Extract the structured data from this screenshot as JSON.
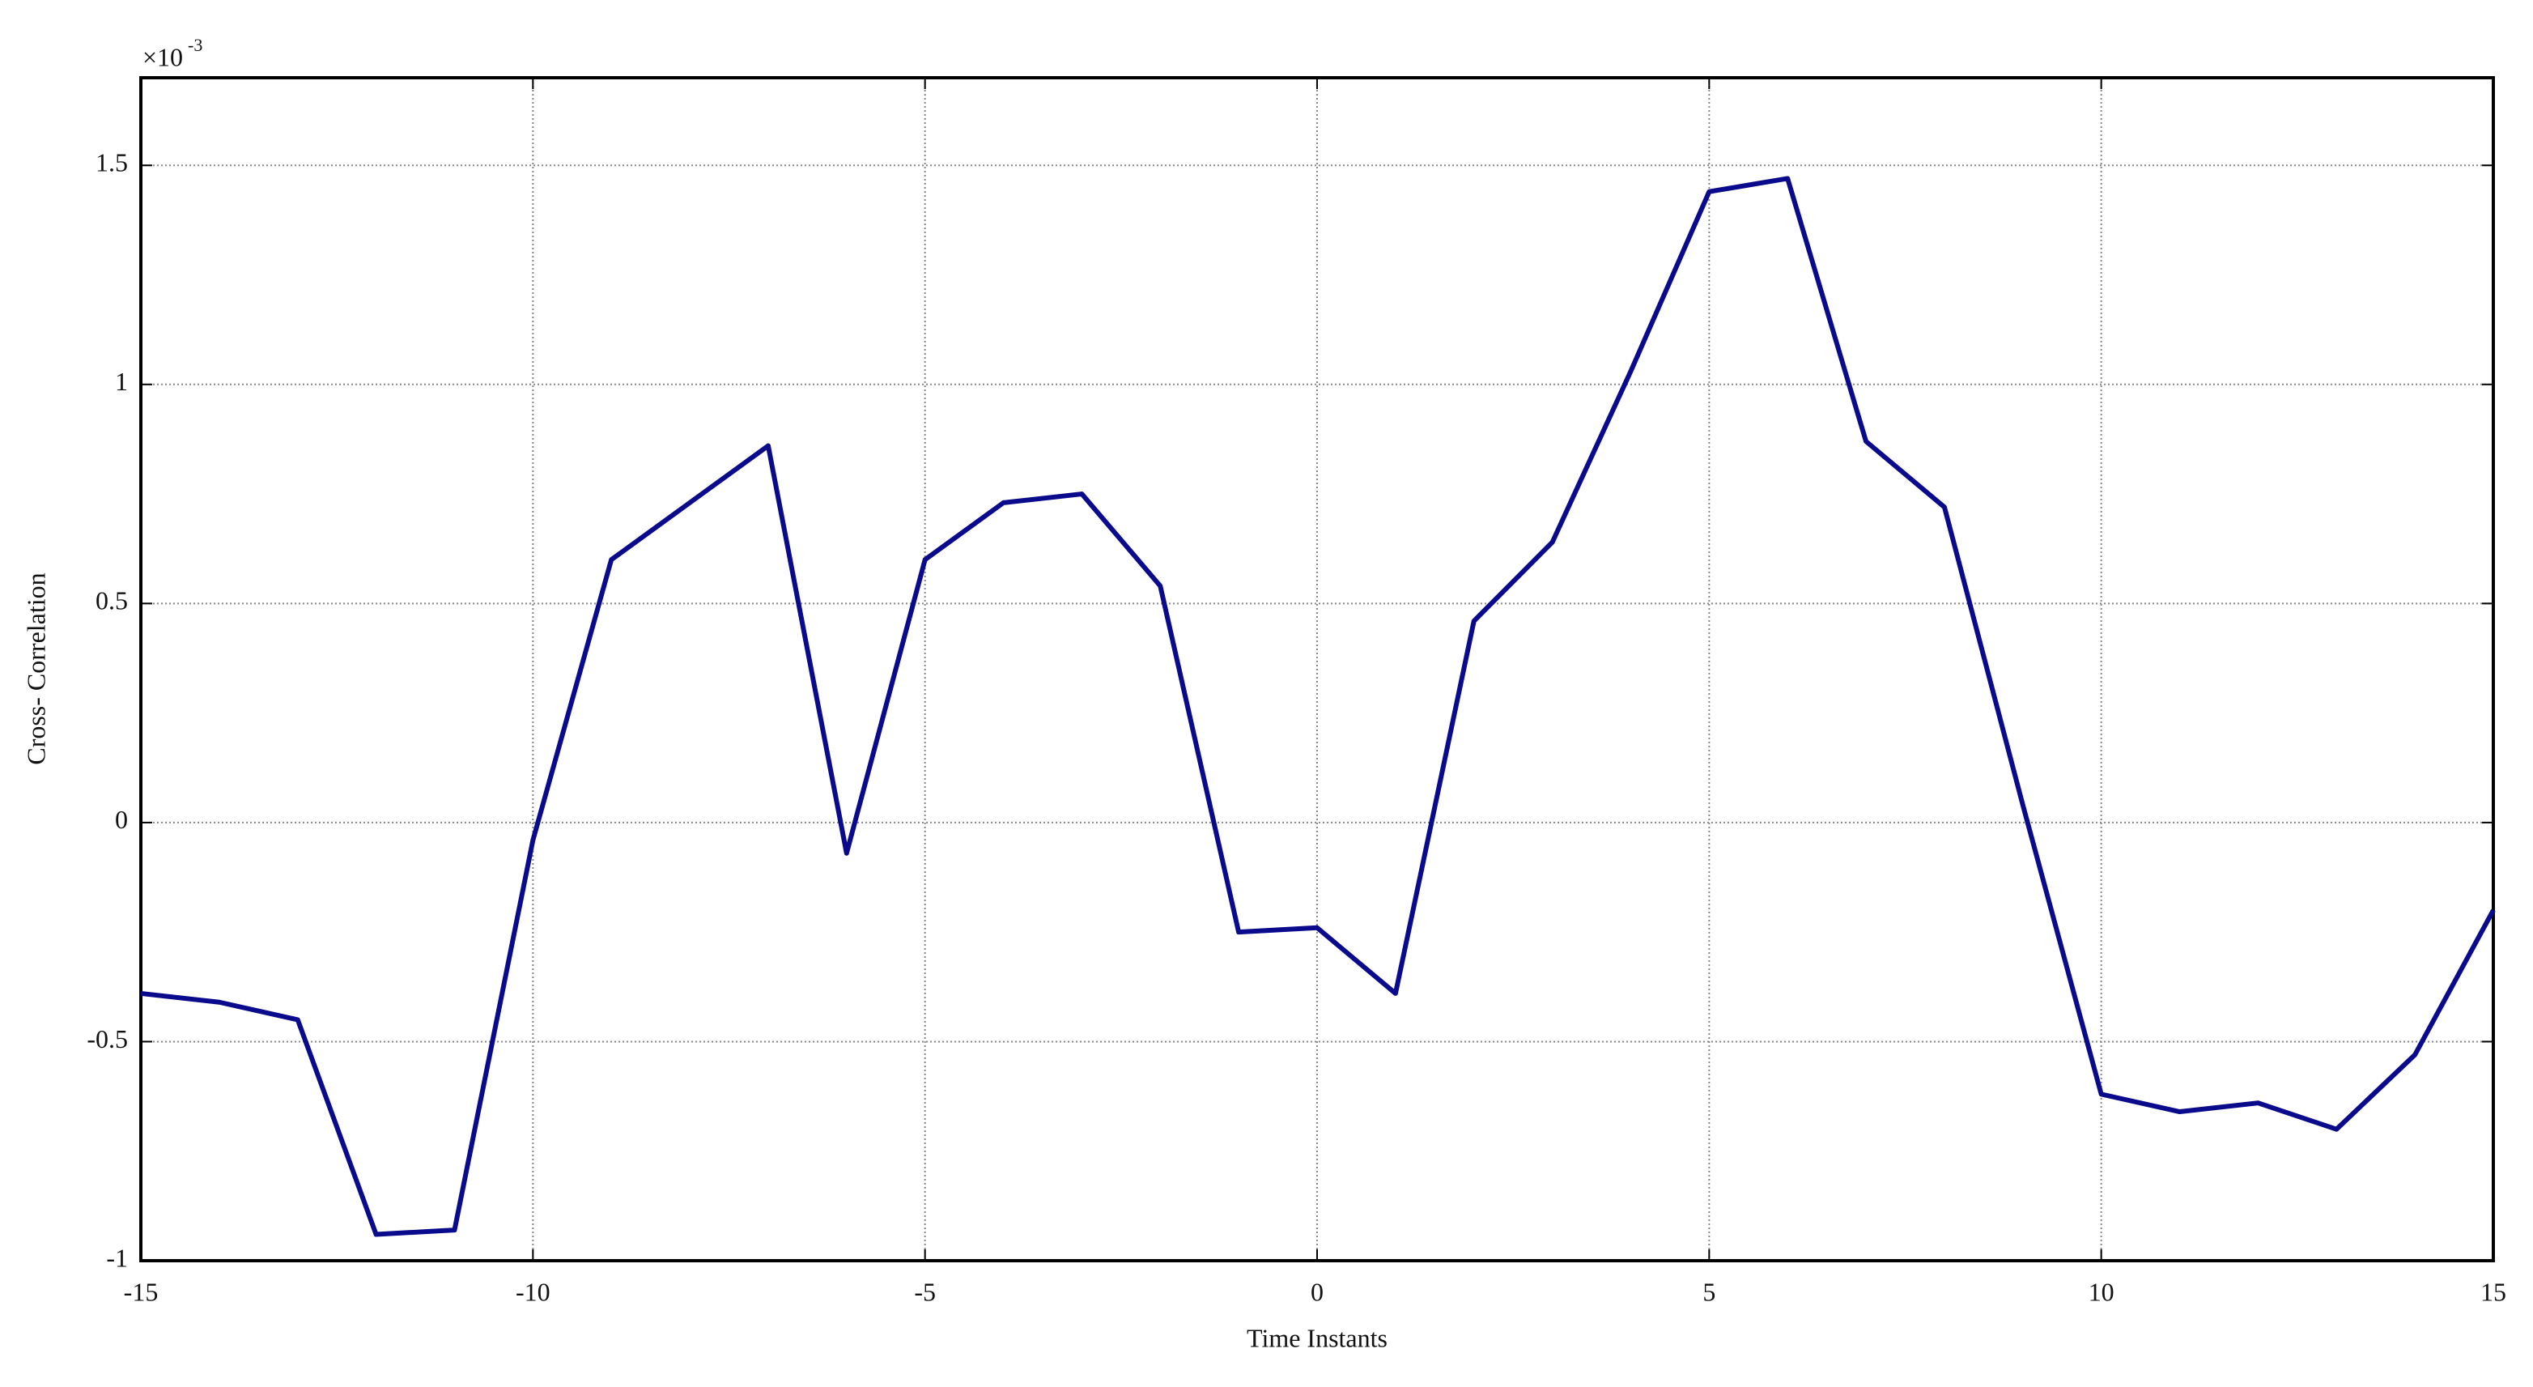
{
  "chart_data": {
    "type": "line",
    "x_label": "Time Instants",
    "y_label": "Cross- Correlation",
    "y_multiplier": {
      "base": "×10",
      "exponent": "-3"
    },
    "x": [
      -15,
      -14,
      -13,
      -12,
      -11,
      -10,
      -9,
      -8,
      -7,
      -6,
      -5,
      -4,
      -3,
      -2,
      -1,
      0,
      1,
      2,
      3,
      4,
      5,
      6,
      7,
      8,
      9,
      10,
      11,
      12,
      13,
      14,
      15
    ],
    "series": [
      {
        "color": "#0a0a8c",
        "values": [
          -0.39,
          -0.41,
          -0.45,
          -0.94,
          -0.93,
          -0.04,
          0.6,
          0.73,
          0.86,
          -0.07,
          0.6,
          0.73,
          0.75,
          0.54,
          -0.25,
          -0.24,
          -0.39,
          0.46,
          0.64,
          1.03,
          1.44,
          1.47,
          0.87,
          0.72,
          0.04,
          -0.62,
          -0.66,
          -0.64,
          -0.7,
          -0.53,
          -0.2
        ]
      }
    ],
    "xlim": [
      -15,
      15
    ],
    "ylim": [
      -1,
      1.7
    ],
    "xticks": [
      -15,
      -10,
      -5,
      0,
      5,
      10,
      15
    ],
    "yticks": [
      -1,
      -0.5,
      0,
      0.5,
      1,
      1.5
    ],
    "grid": true
  }
}
